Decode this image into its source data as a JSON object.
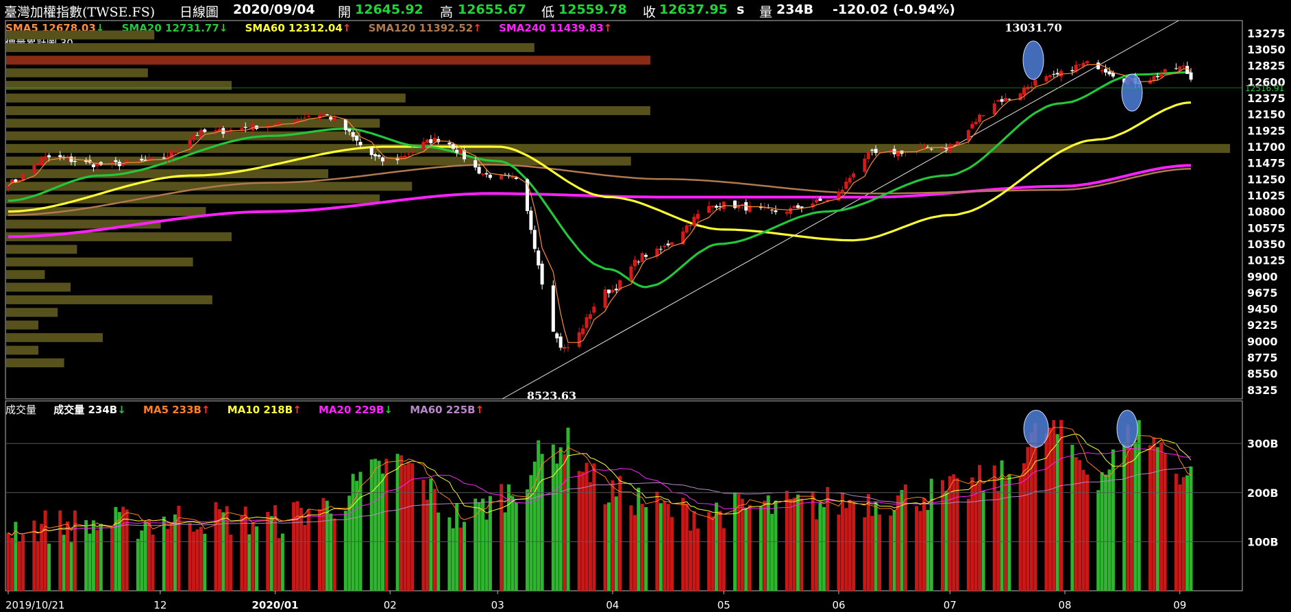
{
  "header": {
    "title": "臺灣加權指數(TWSE.FS)",
    "period": "日線圖",
    "date": "2020/09/04",
    "open_label": "開",
    "open": "12645.92",
    "high_label": "高",
    "high": "12655.67",
    "low_label": "低",
    "low": "12559.78",
    "close_label": "收",
    "close": "12637.95",
    "close_suffix": "s",
    "volume_label": "量",
    "volume": "234B",
    "change": "-120.02 (-0.94%)"
  },
  "price_legend": {
    "sma5": "SMA5 12678.03",
    "sma5_arrow": "↓",
    "sma20": "SMA20 12731.77",
    "sma20_arrow": "↓",
    "sma60": "SMA60 12312.04",
    "sma60_arrow": "↑",
    "sma120": "SMA120 11392.52",
    "sma120_arrow": "↑",
    "sma240": "SMA240 11439.83",
    "sma240_arrow": "↑",
    "volume_profile": "價量累計圖 30"
  },
  "volume_legend": {
    "title": "成交量",
    "vol": "成交量 234B",
    "vol_arrow": "↓",
    "ma5": "MA5 233B",
    "ma5_arrow": "↑",
    "ma10": "MA10 218B",
    "ma10_arrow": "↑",
    "ma20": "MA20 229B",
    "ma20_arrow": "↓",
    "ma60": "MA60 225B",
    "ma60_arrow": "↑"
  },
  "colors": {
    "up": "#d41a1a",
    "down": "#ffffff",
    "vol_up": "#c81818",
    "vol_down": "#2fb52f",
    "sma5": "#ff8c3a",
    "sma20": "#22c73a",
    "sma60": "#ffff33",
    "sma120": "#b07a4d",
    "sma240": "#ff22ff",
    "ma5": "#ff7f27",
    "ma10": "#ffff33",
    "ma20": "#ff22ff",
    "ma60": "#b888c8",
    "profile": "#57521c",
    "profile_highlight": "#8a2b16",
    "current_price": "#22c73a",
    "highlight_ellipse": "#4f7fd8"
  },
  "chart_data": [
    {
      "type": "candlestick",
      "title": "臺灣加權指數(TWSE.FS) 日線圖",
      "ylim": [
        8200,
        13450
      ],
      "y_ticks": [
        13275,
        13050,
        12825,
        12600,
        12375,
        12150,
        11925,
        11700,
        11475,
        11250,
        11025,
        10800,
        10575,
        10350,
        10125,
        9900,
        9675,
        9450,
        9225,
        9000,
        8775,
        8550,
        8325
      ],
      "x_ticks": [
        "2019/10/21",
        "12",
        "2020/01",
        "02",
        "03",
        "04",
        "05",
        "06",
        "07",
        "08",
        "09"
      ],
      "annotations": [
        {
          "text": "13031.70",
          "x": "2020/07/27",
          "y": 13031.7
        },
        {
          "text": "8523.63",
          "x": "2020/03/19",
          "y": 8523.63
        },
        {
          "text": "12516.91",
          "y": 12516.91
        }
      ],
      "close_keypoints": [
        [
          "2019/10/21",
          11200
        ],
        [
          "2019/11/01",
          11550
        ],
        [
          "2019/11/15",
          11450
        ],
        [
          "2019/11/29",
          11500
        ],
        [
          "2019/12/13",
          11900
        ],
        [
          "2019/12/31",
          12000
        ],
        [
          "2020/01/13",
          12150
        ],
        [
          "2020/01/31",
          11500
        ],
        [
          "2020/02/14",
          11800
        ],
        [
          "2020/02/28",
          11300
        ],
        [
          "2020/03/05",
          11250
        ],
        [
          "2020/03/19",
          8900
        ],
        [
          "2020/03/31",
          9700
        ],
        [
          "2020/04/10",
          10200
        ],
        [
          "2020/04/30",
          10900
        ],
        [
          "2020/05/15",
          10800
        ],
        [
          "2020/05/29",
          10950
        ],
        [
          "2020/06/10",
          11600
        ],
        [
          "2020/06/30",
          11700
        ],
        [
          "2020/07/15",
          12350
        ],
        [
          "2020/07/27",
          12650
        ],
        [
          "2020/08/07",
          12850
        ],
        [
          "2020/08/20",
          12600
        ],
        [
          "2020/09/02",
          12800
        ],
        [
          "2020/09/04",
          12637.95
        ]
      ],
      "sma20_keypoints": [
        [
          "2019/10/21",
          10950
        ],
        [
          "2019/11/15",
          11300
        ],
        [
          "2019/12/31",
          11850
        ],
        [
          "2020/01/20",
          11950
        ],
        [
          "2020/02/10",
          11700
        ],
        [
          "2020/03/01",
          11500
        ],
        [
          "2020/03/31",
          10000
        ],
        [
          "2020/04/10",
          9750
        ],
        [
          "2020/04/30",
          10350
        ],
        [
          "2020/05/29",
          10800
        ],
        [
          "2020/06/30",
          11300
        ],
        [
          "2020/07/31",
          12300
        ],
        [
          "2020/08/20",
          12700
        ],
        [
          "2020/09/04",
          12731.77
        ]
      ],
      "sma60_keypoints": [
        [
          "2019/10/21",
          10800
        ],
        [
          "2019/12/10",
          11300
        ],
        [
          "2020/01/31",
          11700
        ],
        [
          "2020/03/01",
          11700
        ],
        [
          "2020/03/31",
          11000
        ],
        [
          "2020/05/01",
          10550
        ],
        [
          "2020/06/05",
          10400
        ],
        [
          "2020/07/01",
          10750
        ],
        [
          "2020/08/10",
          11800
        ],
        [
          "2020/09/04",
          12312.04
        ]
      ],
      "sma120_keypoints": [
        [
          "2019/10/21",
          10750
        ],
        [
          "2019/12/31",
          11200
        ],
        [
          "2020/02/28",
          11450
        ],
        [
          "2020/04/15",
          11250
        ],
        [
          "2020/06/10",
          11050
        ],
        [
          "2020/07/31",
          11100
        ],
        [
          "2020/09/04",
          11392.52
        ]
      ],
      "sma240_keypoints": [
        [
          "2019/10/21",
          10450
        ],
        [
          "2019/12/31",
          10800
        ],
        [
          "2020/02/28",
          11050
        ],
        [
          "2020/04/15",
          11000
        ],
        [
          "2020/06/10",
          11000
        ],
        [
          "2020/07/31",
          11150
        ],
        [
          "2020/09/04",
          11439.83
        ]
      ],
      "volume_profile": [
        {
          "price": 13250,
          "ratio": 0.23
        },
        {
          "price": 13075,
          "ratio": 0.82
        },
        {
          "price": 12900,
          "ratio": 1.0,
          "highlight": true
        },
        {
          "price": 12725,
          "ratio": 0.22
        },
        {
          "price": 12550,
          "ratio": 0.35
        },
        {
          "price": 12375,
          "ratio": 0.62
        },
        {
          "price": 12200,
          "ratio": 1.0
        },
        {
          "price": 12025,
          "ratio": 0.58
        },
        {
          "price": 11850,
          "ratio": 0.55
        },
        {
          "price": 11675,
          "ratio": 1.9
        },
        {
          "price": 11500,
          "ratio": 0.97
        },
        {
          "price": 11325,
          "ratio": 0.5
        },
        {
          "price": 11150,
          "ratio": 0.63
        },
        {
          "price": 10975,
          "ratio": 0.58
        },
        {
          "price": 10800,
          "ratio": 0.31
        },
        {
          "price": 10625,
          "ratio": 0.24
        },
        {
          "price": 10450,
          "ratio": 0.35
        },
        {
          "price": 10275,
          "ratio": 0.11
        },
        {
          "price": 10100,
          "ratio": 0.29
        },
        {
          "price": 9925,
          "ratio": 0.06
        },
        {
          "price": 9750,
          "ratio": 0.1
        },
        {
          "price": 9575,
          "ratio": 0.32
        },
        {
          "price": 9400,
          "ratio": 0.08
        },
        {
          "price": 9225,
          "ratio": 0.05
        },
        {
          "price": 9050,
          "ratio": 0.15
        },
        {
          "price": 8875,
          "ratio": 0.05
        },
        {
          "price": 8700,
          "ratio": 0.09
        }
      ]
    },
    {
      "type": "bar",
      "title": "成交量",
      "ylim": [
        0,
        370
      ],
      "y_ticks": [
        300,
        200,
        100
      ],
      "y_tick_labels": [
        "300B",
        "200B",
        "100B"
      ],
      "value_keypoints": [
        [
          "2019/10/21",
          130
        ],
        [
          "2019/11/15",
          135
        ],
        [
          "2019/12/13",
          150
        ],
        [
          "2019/12/31",
          140
        ],
        [
          "2020/01/13",
          170
        ],
        [
          "2020/02/03",
          260
        ],
        [
          "2020/02/20",
          150
        ],
        [
          "2020/03/05",
          200
        ],
        [
          "2020/03/12",
          270
        ],
        [
          "2020/03/19",
          300
        ],
        [
          "2020/03/31",
          200
        ],
        [
          "2020/04/20",
          160
        ],
        [
          "2020/05/15",
          170
        ],
        [
          "2020/06/10",
          185
        ],
        [
          "2020/06/30",
          200
        ],
        [
          "2020/07/15",
          230
        ],
        [
          "2020/07/27",
          330
        ],
        [
          "2020/08/10",
          240
        ],
        [
          "2020/08/21",
          325
        ],
        [
          "2020/09/04",
          234
        ]
      ]
    }
  ]
}
